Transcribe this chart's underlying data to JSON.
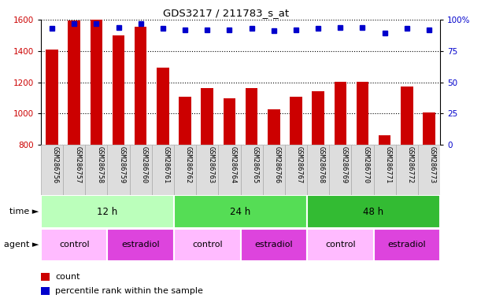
{
  "title": "GDS3217 / 211783_s_at",
  "samples": [
    "GSM286756",
    "GSM286757",
    "GSM286758",
    "GSM286759",
    "GSM286760",
    "GSM286761",
    "GSM286762",
    "GSM286763",
    "GSM286764",
    "GSM286765",
    "GSM286766",
    "GSM286767",
    "GSM286768",
    "GSM286769",
    "GSM286770",
    "GSM286771",
    "GSM286772",
    "GSM286773"
  ],
  "counts": [
    1410,
    1595,
    1600,
    1500,
    1555,
    1295,
    1110,
    1165,
    1100,
    1165,
    1030,
    1110,
    1145,
    1205,
    1205,
    860,
    1175,
    1005
  ],
  "percentile_ranks": [
    93,
    97,
    97,
    94,
    97,
    93,
    92,
    92,
    92,
    93,
    91,
    92,
    93,
    94,
    94,
    89,
    93,
    92
  ],
  "ylim_left": [
    800,
    1600
  ],
  "ylim_right": [
    0,
    100
  ],
  "yticks_left": [
    800,
    1000,
    1200,
    1400,
    1600
  ],
  "yticks_right": [
    0,
    25,
    50,
    75,
    100
  ],
  "bar_color": "#cc0000",
  "dot_color": "#0000cc",
  "time_groups": [
    {
      "label": "12 h",
      "start": 0,
      "end": 6,
      "color": "#bbffbb"
    },
    {
      "label": "24 h",
      "start": 6,
      "end": 12,
      "color": "#55dd55"
    },
    {
      "label": "48 h",
      "start": 12,
      "end": 18,
      "color": "#33bb33"
    }
  ],
  "agent_groups": [
    {
      "label": "control",
      "start": 0,
      "end": 3,
      "color": "#ffbbff"
    },
    {
      "label": "estradiol",
      "start": 3,
      "end": 6,
      "color": "#dd44dd"
    },
    {
      "label": "control",
      "start": 6,
      "end": 9,
      "color": "#ffbbff"
    },
    {
      "label": "estradiol",
      "start": 9,
      "end": 12,
      "color": "#dd44dd"
    },
    {
      "label": "control",
      "start": 12,
      "end": 15,
      "color": "#ffbbff"
    },
    {
      "label": "estradiol",
      "start": 15,
      "end": 18,
      "color": "#dd44dd"
    }
  ],
  "legend_count_label": "count",
  "legend_pct_label": "percentile rank within the sample",
  "time_label": "time",
  "agent_label": "agent",
  "xlabel_bg_color": "#dddddd",
  "xlabel_border_color": "#aaaaaa"
}
